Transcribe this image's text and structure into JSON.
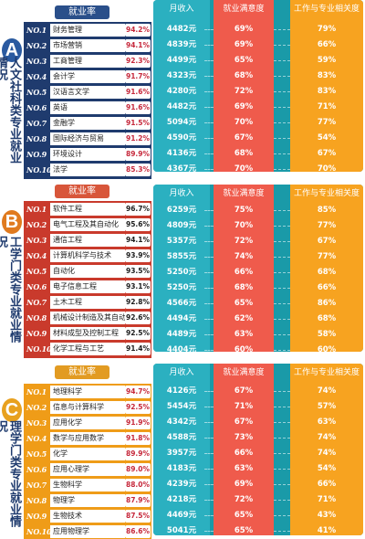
{
  "header": {
    "income": "月收入",
    "satisfaction": "就业满意度",
    "relevance": "工作与专业相关度",
    "rate": "就业率"
  },
  "sections": [
    {
      "letter": "A",
      "side_text": "人文社科类专业就业情况",
      "rows": [
        {
          "rank": "NO.1",
          "name": "财务管理",
          "rate": "94.2%",
          "income": "4482元",
          "satisfaction": "69%",
          "relevance": "79%"
        },
        {
          "rank": "NO.2",
          "name": "市场营销",
          "rate": "94.1%",
          "income": "4839元",
          "satisfaction": "69%",
          "relevance": "66%"
        },
        {
          "rank": "NO.3",
          "name": "工商管理",
          "rate": "92.3%",
          "income": "4499元",
          "satisfaction": "65%",
          "relevance": "59%"
        },
        {
          "rank": "NO.4",
          "name": "会计学",
          "rate": "91.7%",
          "income": "4323元",
          "satisfaction": "68%",
          "relevance": "83%"
        },
        {
          "rank": "NO.5",
          "name": "汉语言文学",
          "rate": "91.6%",
          "income": "4280元",
          "satisfaction": "72%",
          "relevance": "83%"
        },
        {
          "rank": "NO.6",
          "name": "英语",
          "rate": "91.6%",
          "income": "4482元",
          "satisfaction": "69%",
          "relevance": "71%"
        },
        {
          "rank": "NO.7",
          "name": "金融学",
          "rate": "91.5%",
          "income": "5094元",
          "satisfaction": "70%",
          "relevance": "77%"
        },
        {
          "rank": "NO.8",
          "name": "国际经济与贸易",
          "rate": "91.2%",
          "income": "4590元",
          "satisfaction": "67%",
          "relevance": "54%"
        },
        {
          "rank": "NO.9",
          "name": "环境设计",
          "rate": "89.9%",
          "income": "4136元",
          "satisfaction": "68%",
          "relevance": "67%"
        },
        {
          "rank": "NO.10",
          "name": "法学",
          "rate": "85.3%",
          "income": "4367元",
          "satisfaction": "70%",
          "relevance": "70%"
        }
      ]
    },
    {
      "letter": "B",
      "side_text": "工学门类专业就业情况",
      "rows": [
        {
          "rank": "NO.1",
          "name": "软件工程",
          "rate": "96.7%",
          "income": "6259元",
          "satisfaction": "75%",
          "relevance": "85%"
        },
        {
          "rank": "NO.2",
          "name": "电气工程及其自动化",
          "rate": "95.6%",
          "income": "4809元",
          "satisfaction": "70%",
          "relevance": "77%"
        },
        {
          "rank": "NO.3",
          "name": "通信工程",
          "rate": "94.1%",
          "income": "5357元",
          "satisfaction": "72%",
          "relevance": "67%"
        },
        {
          "rank": "NO.4",
          "name": "计算机科学与技术",
          "rate": "93.9%",
          "income": "5855元",
          "satisfaction": "74%",
          "relevance": "77%"
        },
        {
          "rank": "NO.5",
          "name": "自动化",
          "rate": "93.5%",
          "income": "5250元",
          "satisfaction": "66%",
          "relevance": "68%"
        },
        {
          "rank": "NO.6",
          "name": "电子信息工程",
          "rate": "93.1%",
          "income": "5250元",
          "satisfaction": "68%",
          "relevance": "66%"
        },
        {
          "rank": "NO.7",
          "name": "土木工程",
          "rate": "92.8%",
          "income": "4566元",
          "satisfaction": "65%",
          "relevance": "86%"
        },
        {
          "rank": "NO.8",
          "name": "机械设计制造及其自动化",
          "rate": "92.6%",
          "income": "4494元",
          "satisfaction": "62%",
          "relevance": "68%"
        },
        {
          "rank": "NO.9",
          "name": "材料成型及控制工程",
          "rate": "92.5%",
          "income": "4489元",
          "satisfaction": "63%",
          "relevance": "58%"
        },
        {
          "rank": "NO.10",
          "name": "化学工程与工艺",
          "rate": "91.4%",
          "income": "4404元",
          "satisfaction": "60%",
          "relevance": "60%"
        }
      ]
    },
    {
      "letter": "C",
      "side_text": "理学门类专业就业情况",
      "rows": [
        {
          "rank": "NO.1",
          "name": "地理科学",
          "rate": "94.7%",
          "income": "4126元",
          "satisfaction": "67%",
          "relevance": "74%"
        },
        {
          "rank": "NO.2",
          "name": "信息与计算科学",
          "rate": "92.5%",
          "income": "5454元",
          "satisfaction": "71%",
          "relevance": "57%"
        },
        {
          "rank": "NO.3",
          "name": "应用化学",
          "rate": "91.9%",
          "income": "4342元",
          "satisfaction": "67%",
          "relevance": "63%"
        },
        {
          "rank": "NO.4",
          "name": "数学与应用数学",
          "rate": "91.8%",
          "income": "4588元",
          "satisfaction": "73%",
          "relevance": "74%"
        },
        {
          "rank": "NO.5",
          "name": "化学",
          "rate": "89.9%",
          "income": "3957元",
          "satisfaction": "66%",
          "relevance": "74%"
        },
        {
          "rank": "NO.6",
          "name": "应用心理学",
          "rate": "89.0%",
          "income": "4183元",
          "satisfaction": "63%",
          "relevance": "54%"
        },
        {
          "rank": "NO.7",
          "name": "生物科学",
          "rate": "88.0%",
          "income": "4239元",
          "satisfaction": "69%",
          "relevance": "66%"
        },
        {
          "rank": "NO.8",
          "name": "物理学",
          "rate": "87.9%",
          "income": "4218元",
          "satisfaction": "72%",
          "relevance": "71%"
        },
        {
          "rank": "NO.9",
          "name": "生物技术",
          "rate": "87.5%",
          "income": "4469元",
          "satisfaction": "65%",
          "relevance": "43%"
        },
        {
          "rank": "NO.10",
          "name": "应用物理学",
          "rate": "86.6%",
          "income": "5041元",
          "satisfaction": "65%",
          "relevance": "41%"
        }
      ]
    }
  ]
}
